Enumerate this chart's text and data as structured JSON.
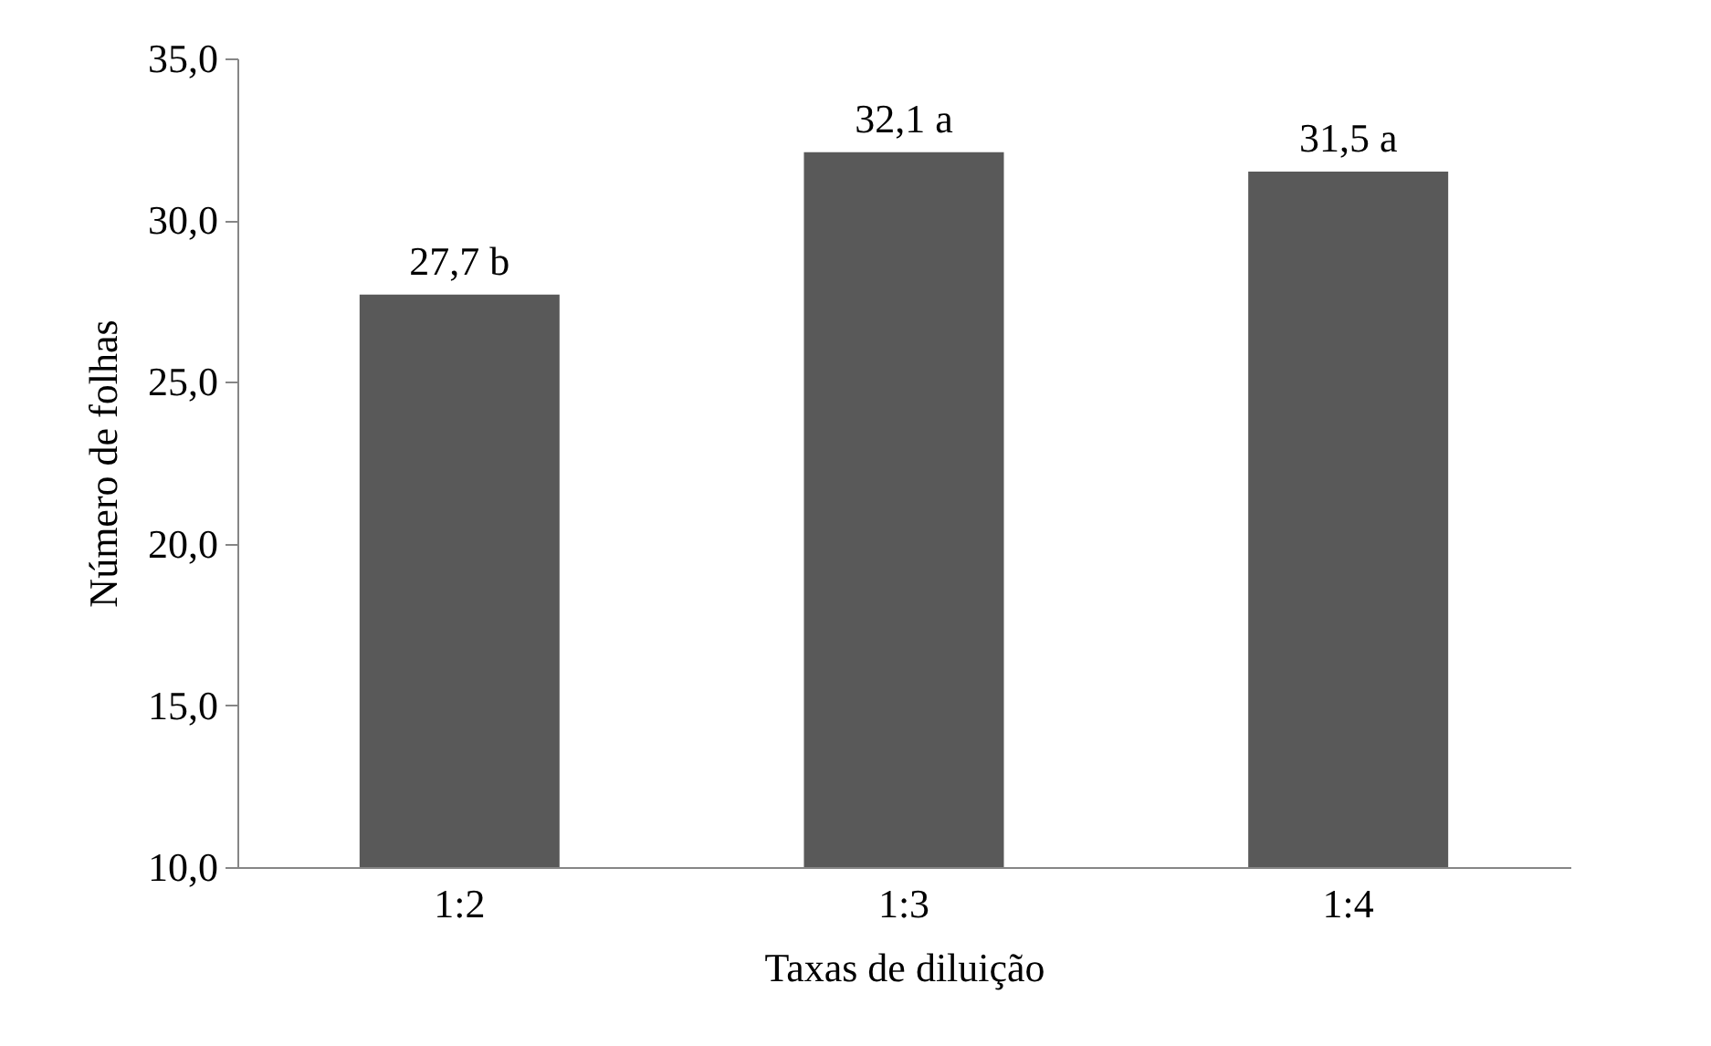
{
  "chart_data": {
    "type": "bar",
    "xlabel": "Taxas de diluição",
    "ylabel": "Número de folhas",
    "categories": [
      "1:2",
      "1:3",
      "1:4"
    ],
    "values": [
      27.7,
      32.1,
      31.5
    ],
    "value_labels": [
      "27,7 b",
      "32,1 a",
      "31,5 a"
    ],
    "color": "#595959",
    "ylim": [
      10,
      35
    ],
    "yticks": [
      {
        "value": 10,
        "label": "10,0"
      },
      {
        "value": 15,
        "label": "15,0"
      },
      {
        "value": 20,
        "label": "20,0"
      },
      {
        "value": 25,
        "label": "25,0"
      },
      {
        "value": 30,
        "label": "30,0"
      },
      {
        "value": 35,
        "label": "35,0"
      }
    ],
    "grid": false
  }
}
